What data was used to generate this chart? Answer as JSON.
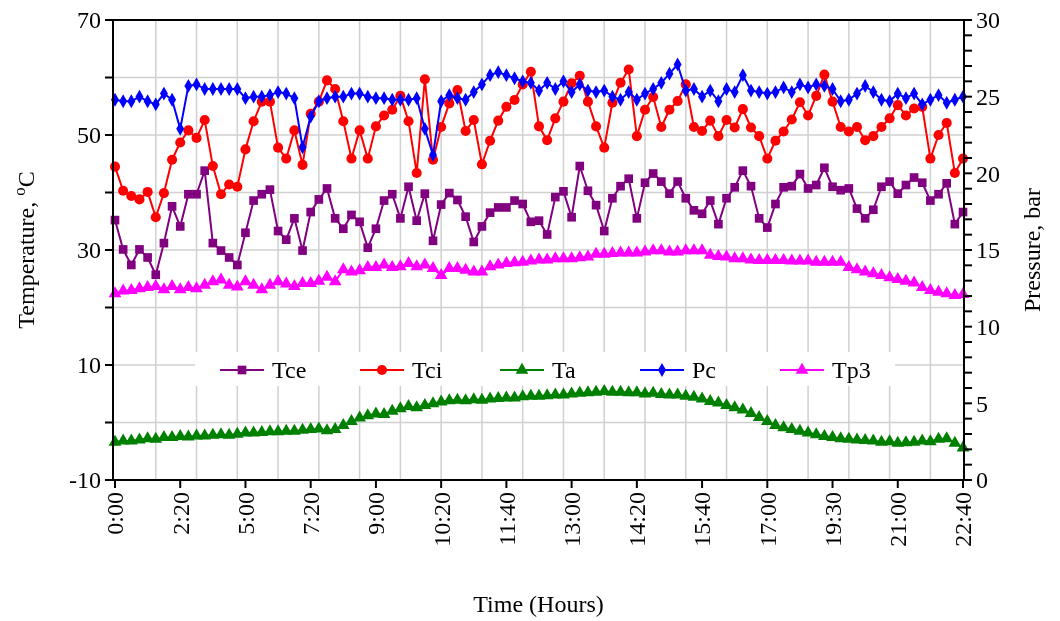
{
  "chart_data": {
    "type": "line",
    "xlabel": "Time (Hours)",
    "ylabel": "Temperature, $^{o}$C",
    "y2label": "Pressure, bar",
    "categories": [
      "0:00",
      null,
      null,
      null,
      null,
      null,
      null,
      null,
      "2:20",
      null,
      null,
      null,
      null,
      null,
      null,
      null,
      "5:00",
      null,
      null,
      null,
      null,
      null,
      null,
      null,
      "7:20",
      null,
      null,
      null,
      null,
      null,
      null,
      null,
      "9:00",
      null,
      null,
      null,
      null,
      null,
      null,
      null,
      "10:20",
      null,
      null,
      null,
      null,
      null,
      null,
      null,
      "11:40",
      null,
      null,
      null,
      null,
      null,
      null,
      null,
      "13:00",
      null,
      null,
      null,
      null,
      null,
      null,
      null,
      "14:20",
      null,
      null,
      null,
      null,
      null,
      null,
      null,
      "15:40",
      null,
      null,
      null,
      null,
      null,
      null,
      null,
      "17:00",
      null,
      null,
      null,
      null,
      null,
      null,
      null,
      "19:30",
      null,
      null,
      null,
      null,
      null,
      null,
      null,
      "21:00",
      null,
      null,
      null,
      null,
      null,
      null,
      null,
      "22:40"
    ],
    "series": [
      {
        "name": "Tce",
        "color": "#800080",
        "marker": "square",
        "values": [
          35.2,
          30.1,
          27.4,
          30.1,
          28.7,
          25.7,
          31.2,
          37.6,
          34.1,
          39.7,
          39.7,
          43.8,
          31.2,
          29.9,
          28.7,
          27.4,
          33.0,
          38.6,
          39.7,
          40.5,
          33.3,
          31.8,
          35.5,
          29.9,
          36.6,
          38.8,
          40.7,
          35.5,
          33.7,
          36.1,
          34.9,
          30.4,
          33.7,
          38.6,
          39.7,
          35.5,
          41.0,
          35.1,
          39.8,
          31.6,
          37.9,
          39.9,
          38.7,
          35.8,
          31.4,
          34.1,
          36.5,
          37.4,
          37.4,
          38.6,
          38.0,
          34.9,
          35.1,
          32.7,
          39.2,
          40.2,
          35.7,
          44.6,
          40.3,
          37.8,
          33.3,
          39.0,
          41.1,
          42.4,
          35.5,
          41.7,
          43.3,
          41.9,
          39.8,
          41.9,
          39.0,
          36.9,
          36.3,
          38.6,
          34.5,
          39.0,
          40.9,
          43.8,
          41.1,
          35.5,
          33.9,
          38.0,
          40.9,
          41.1,
          43.2,
          40.7,
          41.3,
          44.3,
          41.0,
          40.4,
          40.7,
          37.2,
          35.5,
          37.0,
          41.0,
          41.9,
          39.8,
          41.3,
          42.6,
          41.7,
          38.6,
          39.7,
          41.6,
          34.5,
          36.6
        ]
      },
      {
        "name": "Tci",
        "color": "#ff0000",
        "marker": "circle",
        "values": [
          44.5,
          40.3,
          39.4,
          38.8,
          40.1,
          35.7,
          39.9,
          45.7,
          48.7,
          50.8,
          49.5,
          52.6,
          44.6,
          39.7,
          41.4,
          41.0,
          47.5,
          52.4,
          55.8,
          55.8,
          47.8,
          45.9,
          50.8,
          44.8,
          53.7,
          55.8,
          59.5,
          58.0,
          52.4,
          45.9,
          50.8,
          45.9,
          51.5,
          53.4,
          54.4,
          56.8,
          52.4,
          43.4,
          59.7,
          45.7,
          51.4,
          55.5,
          57.8,
          50.7,
          52.6,
          44.9,
          49.0,
          52.5,
          54.9,
          56.1,
          58.8,
          61.0,
          51.5,
          49.1,
          52.9,
          55.8,
          59.0,
          60.3,
          55.8,
          51.5,
          47.8,
          55.6,
          59.1,
          61.4,
          49.8,
          54.4,
          56.6,
          51.4,
          54.4,
          55.9,
          58.8,
          51.4,
          50.7,
          52.5,
          49.8,
          52.6,
          51.3,
          54.5,
          51.3,
          49.8,
          45.9,
          49.0,
          50.6,
          52.7,
          55.7,
          53.4,
          56.8,
          60.5,
          55.8,
          51.4,
          50.6,
          51.4,
          49.1,
          49.8,
          51.4,
          52.9,
          55.2,
          53.4,
          54.6,
          54.9,
          45.9,
          50.0,
          52.1,
          43.4,
          45.9
        ]
      },
      {
        "name": "Ta",
        "color": "#008000",
        "marker": "triangle",
        "values": [
          -3.4,
          -3.2,
          -3.2,
          -3.0,
          -2.8,
          -2.9,
          -2.6,
          -2.6,
          -2.4,
          -2.5,
          -2.3,
          -2.3,
          -2.2,
          -2.1,
          -2.2,
          -2.0,
          -1.8,
          -1.8,
          -1.7,
          -1.6,
          -1.6,
          -1.5,
          -1.5,
          -1.3,
          -1.2,
          -1.1,
          -1.4,
          -1.2,
          -0.5,
          0.2,
          0.8,
          1.2,
          1.5,
          1.4,
          2.0,
          2.4,
          2.8,
          2.6,
          3.0,
          3.3,
          3.6,
          3.8,
          3.9,
          3.8,
          4.0,
          3.9,
          4.1,
          4.2,
          4.3,
          4.3,
          4.5,
          4.6,
          4.6,
          4.7,
          4.8,
          4.8,
          5.0,
          5.1,
          5.2,
          5.3,
          5.4,
          5.3,
          5.3,
          5.2,
          5.2,
          5.0,
          5.1,
          4.9,
          4.8,
          4.8,
          4.6,
          4.4,
          4.1,
          3.7,
          3.4,
          3.0,
          2.6,
          2.2,
          1.6,
          0.9,
          0.2,
          -0.5,
          -0.9,
          -1.2,
          -1.5,
          -1.8,
          -2.1,
          -2.4,
          -2.6,
          -2.8,
          -2.9,
          -3.0,
          -3.1,
          -3.2,
          -3.4,
          -3.3,
          -3.6,
          -3.5,
          -3.4,
          -3.2,
          -3.3,
          -2.9,
          -2.8,
          -3.6,
          -4.4
        ]
      },
      {
        "name": "Pc",
        "color": "#0000ff",
        "marker": "diamond",
        "axis": "y2",
        "values": [
          24.8,
          24.7,
          24.7,
          25.0,
          24.7,
          24.5,
          25.2,
          24.8,
          22.9,
          25.7,
          25.8,
          25.5,
          25.5,
          25.5,
          25.5,
          25.5,
          24.9,
          25.0,
          25.0,
          25.1,
          25.3,
          25.2,
          24.9,
          21.7,
          23.7,
          24.7,
          24.9,
          25.0,
          25.0,
          25.2,
          25.2,
          25.0,
          24.9,
          24.9,
          24.8,
          24.8,
          24.8,
          24.9,
          22.9,
          21.2,
          24.7,
          25.1,
          24.9,
          24.8,
          25.3,
          25.8,
          26.4,
          26.6,
          26.4,
          26.2,
          26.0,
          25.9,
          25.4,
          25.9,
          25.5,
          26.0,
          25.3,
          25.8,
          25.4,
          25.3,
          25.4,
          25.0,
          24.8,
          25.3,
          24.8,
          25.2,
          25.5,
          25.9,
          26.5,
          27.1,
          25.4,
          25.5,
          25.0,
          25.4,
          24.7,
          25.5,
          25.3,
          26.4,
          25.4,
          25.3,
          25.2,
          25.3,
          25.6,
          25.3,
          25.8,
          25.6,
          25.8,
          25.7,
          25.5,
          24.7,
          24.8,
          25.2,
          25.7,
          25.3,
          24.8,
          24.7,
          25.2,
          24.9,
          25.2,
          24.5,
          24.8,
          25.1,
          24.6,
          24.8,
          25.0
        ]
      },
      {
        "name": "Tp3",
        "color": "#ff00ff",
        "marker": "triangle",
        "values": [
          22.4,
          22.9,
          23.0,
          23.3,
          23.5,
          23.7,
          23.1,
          23.7,
          23.1,
          23.5,
          23.3,
          23.9,
          24.5,
          24.8,
          23.9,
          23.6,
          24.5,
          23.9,
          23.1,
          23.9,
          24.5,
          24.1,
          23.7,
          24.2,
          24.2,
          24.6,
          25.3,
          24.5,
          26.6,
          26.2,
          26.4,
          27.0,
          27.0,
          27.4,
          27.0,
          27.1,
          27.7,
          27.1,
          27.4,
          26.8,
          25.6,
          26.8,
          26.8,
          26.5,
          26.2,
          26.2,
          27.1,
          27.4,
          27.7,
          27.8,
          27.9,
          28.1,
          28.3,
          28.3,
          28.5,
          28.5,
          28.5,
          28.7,
          28.8,
          29.3,
          29.3,
          29.4,
          29.5,
          29.5,
          29.5,
          29.7,
          29.9,
          29.9,
          29.7,
          29.7,
          29.9,
          29.9,
          29.9,
          29.1,
          28.9,
          28.8,
          28.5,
          28.5,
          28.3,
          28.2,
          28.2,
          28.2,
          28.2,
          28.1,
          28.1,
          28.1,
          27.9,
          27.9,
          27.9,
          27.9,
          27.0,
          26.6,
          26.2,
          25.9,
          25.6,
          25.2,
          24.9,
          24.6,
          24.3,
          23.5,
          23.0,
          22.7,
          22.4,
          22.1,
          22.3
        ]
      }
    ],
    "ylim": [
      -10,
      70
    ],
    "yticks": [
      -10,
      {
        "value": 0,
        "label": null
      },
      10,
      {
        "value": 20,
        "label": null
      },
      30,
      {
        "value": 40,
        "label": null
      },
      50,
      {
        "value": 60,
        "label": null
      },
      70
    ],
    "y2lim": [
      0,
      30
    ],
    "y2ticks": [
      0,
      {
        "value": 1,
        "label": null
      },
      {
        "value": 2,
        "label": null
      },
      {
        "value": 3,
        "label": null
      },
      {
        "value": 4,
        "label": null
      },
      5,
      {
        "value": 6,
        "label": null
      },
      {
        "value": 7,
        "label": null
      },
      {
        "value": 8,
        "label": null
      },
      {
        "value": 9,
        "label": null
      },
      10,
      {
        "value": 11,
        "label": null
      },
      {
        "value": 12,
        "label": null
      },
      {
        "value": 13,
        "label": null
      },
      {
        "value": 14,
        "label": null
      },
      15,
      {
        "value": 16,
        "label": null
      },
      {
        "value": 17,
        "label": null
      },
      {
        "value": 18,
        "label": null
      },
      {
        "value": 19,
        "label": null
      },
      20,
      {
        "value": 21,
        "label": null
      },
      {
        "value": 22,
        "label": null
      },
      {
        "value": 23,
        "label": null
      },
      {
        "value": 24,
        "label": null
      },
      25,
      {
        "value": 26,
        "label": null
      },
      {
        "value": 27,
        "label": null
      },
      {
        "value": 28,
        "label": null
      },
      {
        "value": 29,
        "label": null
      },
      30
    ],
    "grid": true,
    "legend": "center",
    "line_style": "solid"
  }
}
